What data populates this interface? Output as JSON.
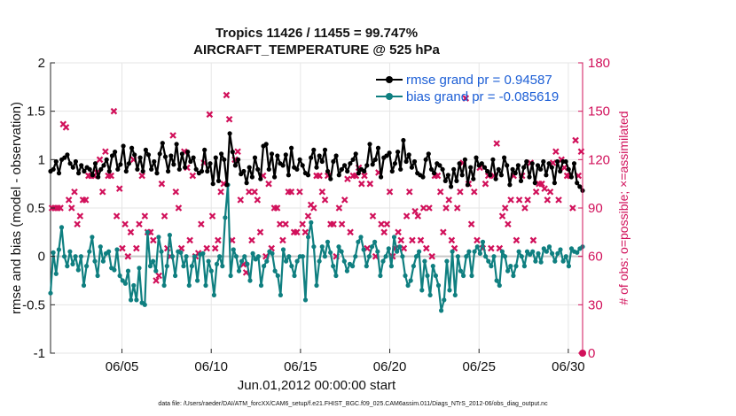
{
  "chart_data": {
    "type": "line",
    "title": "Tropics 11426 / 11455 = 99.747%",
    "subtitle": "AIRCRAFT_TEMPERATURE @ 525 hPa",
    "xlabel": "Jun.01,2012 00:00:00 start",
    "ylabel": "rmse and bias (model - observation)",
    "y2label": "# of obs: o=possible; ×=assimilated",
    "footnote": "data file: /Users/raeder/DAI/ATM_forcXX/CAM6_setup/f.e21.FHIST_BGC.f09_025.CAM6assim.011/Diags_NTrS_2012-06/obs_diag_output.nc",
    "xlim": [
      1,
      30.8
    ],
    "ylim": [
      -1,
      2
    ],
    "y2lim": [
      0,
      180
    ],
    "x_ticks": [
      5,
      10,
      15,
      20,
      25,
      30
    ],
    "x_tick_labels": [
      "06/05",
      "06/10",
      "06/15",
      "06/20",
      "06/25",
      "06/30"
    ],
    "y_ticks": [
      -1,
      -0.5,
      0,
      0.5,
      1,
      1.5,
      2
    ],
    "y_tick_labels": [
      "-1",
      "-0.5",
      "0",
      "0.5",
      "1",
      "1.5",
      "2"
    ],
    "y2_ticks": [
      0,
      30,
      60,
      90,
      120,
      150,
      180
    ],
    "y2_tick_labels": [
      "0",
      "30",
      "60",
      "90",
      "120",
      "150",
      "180"
    ],
    "zero_line": 0,
    "legend_position": "top-right",
    "colors": {
      "rmse": "#000000",
      "bias": "#0f7f80",
      "obs": "#d1105a",
      "zero": "#c8c8c8",
      "legend_text": "#1d5fd6"
    },
    "series": [
      {
        "name": "rmse",
        "legend": "rmse grand pr = 0.94587",
        "axis": "left",
        "values": [
          0.88,
          0.9,
          0.98,
          0.86,
          1.0,
          1.02,
          1.05,
          0.96,
          0.92,
          0.98,
          0.86,
          0.94,
          0.88,
          0.92,
          0.9,
          0.84,
          0.96,
          0.82,
          0.9,
          0.94,
          1.0,
          0.88,
          1.04,
          1.08,
          0.9,
          0.95,
          1.14,
          0.88,
          0.96,
          1.12,
          1.05,
          0.9,
          1.02,
          0.88,
          1.1,
          1.05,
          0.9,
          0.98,
          0.86,
          1.06,
          1.17,
          1.03,
          0.88,
          1.04,
          0.95,
          1.16,
          0.9,
          1.06,
          0.92,
          1.08,
          0.98,
          1.02,
          0.9,
          0.86,
          0.88,
          1.1,
          0.88,
          0.96,
          0.75,
          1.02,
          0.78,
          1.06,
          1.0,
          0.74,
          1.27,
          1.08,
          0.94,
          1.0,
          0.85,
          0.88,
          0.76,
          0.92,
          0.82,
          1.02,
          0.9,
          0.8,
          1.14,
          1.16,
          0.9,
          1.06,
          0.82,
          1.04,
          0.96,
          0.94,
          1.05,
          0.84,
          1.12,
          0.92,
          0.9,
          1.0,
          0.94,
          0.86,
          0.84,
          1.02,
          1.1,
          0.92,
          1.04,
          0.98,
          1.1,
          0.88,
          0.8,
          0.98,
          1.04,
          0.84,
          0.9,
          0.94,
          0.88,
          0.96,
          1.0,
          1.06,
          0.86,
          0.9,
          0.88,
          0.94,
          1.16,
          0.95,
          1.0,
          1.12,
          0.82,
          1.02,
          1.04,
          1.07,
          0.88,
          0.96,
          1.08,
          0.9,
          1.2,
          0.98,
          1.05,
          0.92,
          0.98,
          0.86,
          0.84,
          0.82,
          1.0,
          1.06,
          0.9,
          0.86,
          0.96,
          0.94,
          0.9,
          0.78,
          0.84,
          0.72,
          0.9,
          0.78,
          0.96,
          0.84,
          1.0,
          0.74,
          0.92,
          0.8,
          1.02,
          0.94,
          0.96,
          0.92,
          0.88,
          0.84,
          1.0,
          0.8,
          0.9,
          0.84,
          1.02,
          0.94,
          0.74,
          0.9,
          0.86,
          0.94,
          0.78,
          0.92,
          0.98,
          0.82,
          0.96,
          0.76,
          0.94,
          0.9,
          0.98,
          0.84,
          0.96,
          0.92,
          0.76,
          0.98,
          0.88,
          0.98,
          0.98,
          0.9,
          0.82,
          0.96,
          0.76,
          0.72,
          0.68
        ]
      },
      {
        "name": "bias",
        "legend": "bias grand pr = -0.085619",
        "axis": "left",
        "values": [
          -0.38,
          0.04,
          -0.18,
          0.07,
          0.3,
          0.0,
          -0.1,
          0.05,
          -0.08,
          0.0,
          -0.14,
          0.0,
          -0.3,
          -0.1,
          0.05,
          0.2,
          -0.05,
          -0.2,
          0.1,
          -0.05,
          0.03,
          0.05,
          -0.12,
          -0.14,
          0.07,
          -0.2,
          -0.25,
          -0.28,
          -0.15,
          -0.45,
          -0.3,
          -0.45,
          -0.12,
          -0.48,
          -0.5,
          0.25,
          -0.1,
          -0.05,
          -0.15,
          0.2,
          0.05,
          -0.3,
          -0.1,
          0.22,
          0.0,
          -0.2,
          0.05,
          0.04,
          -0.1,
          0.0,
          -0.3,
          -0.1,
          0.0,
          -0.25,
          0.02,
          0.03,
          -0.3,
          -0.05,
          -0.15,
          -0.4,
          -0.08,
          0.0,
          -0.1,
          0.4,
          0.74,
          -0.2,
          0.07,
          0.0,
          -0.15,
          -0.05,
          0.0,
          -0.08,
          -0.25,
          0.03,
          -0.03,
          0.0,
          -0.3,
          -0.1,
          -0.05,
          0.05,
          0.03,
          -0.15,
          -0.2,
          -0.4,
          0.07,
          -0.05,
          0.0,
          -0.1,
          -0.2,
          -0.05,
          0.0,
          0.0,
          -0.45,
          0.2,
          0.35,
          0.1,
          -0.3,
          -0.05,
          0.1,
          0.0,
          0.15,
          0.04,
          -0.1,
          -0.2,
          0.1,
          0.05,
          -0.05,
          -0.15,
          -0.08,
          -0.1,
          0.0,
          0.15,
          0.2,
          0.07,
          -0.1,
          0.0,
          0.1,
          0.15,
          0.05,
          -0.2,
          -0.05,
          0.0,
          0.08,
          -0.1,
          0.2,
          0.05,
          0.1,
          0.0,
          -0.2,
          -0.3,
          -0.25,
          -0.1,
          0.0,
          0.05,
          -0.35,
          -0.05,
          -0.2,
          -0.4,
          -0.1,
          -0.2,
          -0.3,
          -0.56,
          -0.45,
          -0.05,
          -0.35,
          0.05,
          -0.4,
          0.0,
          -0.15,
          -0.2,
          0.0,
          0.05,
          -0.2,
          0.05,
          0.1,
          0.03,
          0.15,
          0.0,
          -0.05,
          -0.1,
          0.0,
          -0.25,
          -0.3,
          0.05,
          0.0,
          -0.15,
          -0.1,
          -0.2,
          -0.1,
          0.05,
          0.0,
          -0.1,
          0.05,
          0.02,
          0.05,
          -0.05,
          0.03,
          -0.06,
          0.08,
          0.05,
          0.1,
          0.03,
          -0.05,
          0.03,
          0.07,
          -0.05,
          0.0,
          -0.1,
          0.08,
          0.05,
          0.04,
          0.08,
          0.1
        ]
      },
      {
        "name": "obs_assimilated",
        "axis": "right",
        "marker": "×",
        "values": [
          90,
          90,
          90,
          90,
          142,
          140,
          95,
          90,
          100,
          80,
          85,
          95,
          95,
          110,
          110,
          110,
          112,
          120,
          100,
          125,
          110,
          110,
          150,
          85,
          102,
          65,
          80,
          60,
          75,
          120,
          65,
          80,
          110,
          85,
          75,
          75,
          70,
          45,
          48,
          105,
          85,
          65,
          60,
          135,
          100,
          90,
          65,
          125,
          115,
          70,
          110,
          60,
          62,
          80,
          118,
          65,
          148,
          85,
          65,
          70,
          100,
          105,
          160,
          145,
          70,
          120,
          125,
          95,
          55,
          50,
          100,
          70,
          100,
          95,
          75,
          110,
          60,
          105,
          65,
          90,
          90,
          80,
          70,
          80,
          100,
          100,
          75,
          75,
          100,
          80,
          75,
          85,
          92,
          90,
          110,
          110,
          100,
          95,
          110,
          80,
          80,
          60,
          90,
          80,
          95,
          108,
          75,
          110,
          110,
          115,
          105,
          110,
          65,
          105,
          85,
          60,
          112,
          80,
          75,
          80,
          100,
          60,
          65,
          75,
          70,
          65,
          85,
          100,
          70,
          88,
          85,
          70,
          90,
          65,
          90,
          60,
          110,
          110,
          100,
          75,
          90,
          95,
          70,
          65,
          90,
          100,
          118,
          158,
          105,
          80,
          100,
          70,
          115,
          65,
          105,
          110,
          65,
          110,
          130,
          65,
          85,
          90,
          80,
          95,
          110,
          70,
          95,
          110,
          90,
          95,
          118,
          70,
          100,
          105,
          105,
          102,
          95,
          100,
          118,
          125,
          95,
          120,
          115,
          110,
          110,
          90,
          132,
          110,
          125
        ],
        "x_spacing": "uniform over day 1 to day 30.8"
      }
    ],
    "obs_possible_label": "o=possible"
  }
}
